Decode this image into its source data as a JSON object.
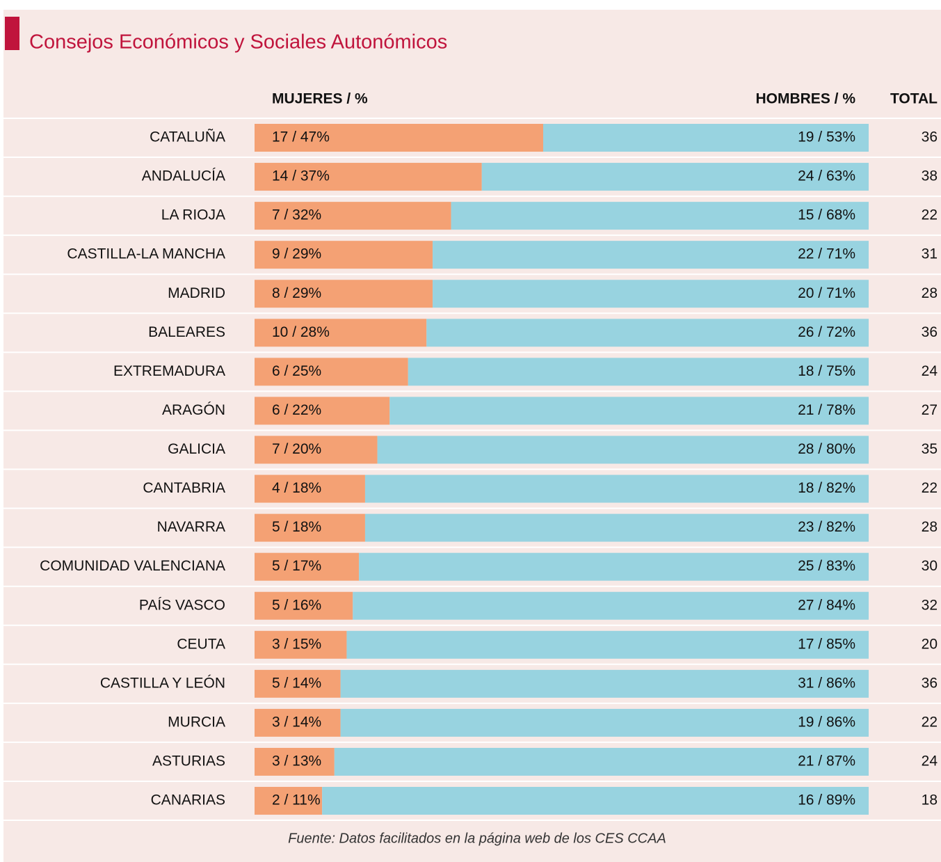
{
  "chart_data": {
    "type": "stacked-bar-100",
    "title": "Consejos Económicos y Sociales Autonómicos",
    "categories": [
      "CATALUÑA",
      "ANDALUCÍA",
      "LA RIOJA",
      "CASTILLA-LA MANCHA",
      "MADRID",
      "BALEARES",
      "EXTREMADURA",
      "ARAGÓN",
      "GALICIA",
      "CANTABRIA",
      "NAVARRA",
      "COMUNIDAD VALENCIANA",
      "PAÍS VASCO",
      "CEUTA",
      "CASTILLA Y LEÓN",
      "MURCIA",
      "ASTURIAS",
      "CANARIAS"
    ],
    "series": [
      {
        "name": "MUJERES / %",
        "color": "#f4a174",
        "values": [
          47,
          37,
          32,
          29,
          29,
          28,
          25,
          22,
          20,
          18,
          18,
          17,
          16,
          15,
          14,
          14,
          13,
          11
        ],
        "value_labels": [
          "17 / 47%",
          "14 / 37%",
          "7 / 32%",
          "9 / 29%",
          "8 / 29%",
          "10 / 28%",
          "6 / 25%",
          "6 / 22%",
          "7 / 20%",
          "4 / 18%",
          "5 / 18%",
          "5 / 17%",
          "5 / 16%",
          "3 / 15%",
          "5 / 14%",
          "3 / 14%",
          "3 / 13%",
          "2 / 11%"
        ]
      },
      {
        "name": "HOMBRES / %",
        "color": "#98d3e0",
        "values": [
          53,
          63,
          68,
          71,
          71,
          72,
          75,
          78,
          80,
          82,
          82,
          83,
          84,
          85,
          86,
          86,
          87,
          89
        ],
        "value_labels": [
          "19 / 53%",
          "24 / 63%",
          "15 / 68%",
          "22 / 71%",
          "20 / 71%",
          "26 / 72%",
          "18 / 75%",
          "21 / 78%",
          "28 / 80%",
          "18 / 82%",
          "23 / 82%",
          "25 / 83%",
          "27 / 84%",
          "17 / 85%",
          "31 / 86%",
          "19 / 86%",
          "21 / 87%",
          "16 / 89%"
        ]
      }
    ],
    "total_label": "TOTAL",
    "totals": [
      36,
      38,
      22,
      31,
      28,
      36,
      24,
      27,
      35,
      22,
      28,
      30,
      32,
      20,
      36,
      22,
      24,
      18
    ],
    "xlim": [
      0,
      100
    ],
    "source": "Fuente: Datos facilitados en la página web de los CES CCAA"
  }
}
